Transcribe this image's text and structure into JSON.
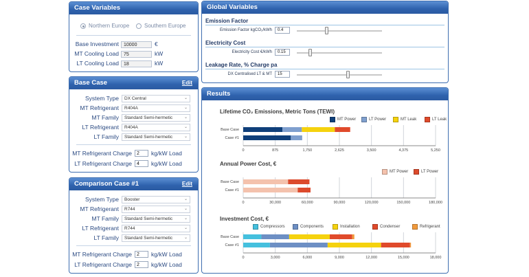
{
  "case_variables": {
    "title": "Case Variables",
    "regions": [
      {
        "label": "Northern Europe",
        "selected": true
      },
      {
        "label": "Southern Europe",
        "selected": false
      }
    ],
    "fields": [
      {
        "label": "Base Investment",
        "value": "10000",
        "unit": "€"
      },
      {
        "label": "MT Cooling Load",
        "value": "75",
        "unit": "kW"
      },
      {
        "label": "LT Cooling Load",
        "value": "18",
        "unit": "kW"
      }
    ]
  },
  "base_case": {
    "title": "Base Case",
    "edit": "Edit",
    "selects": [
      {
        "label": "System Type",
        "value": "DX Central"
      },
      {
        "label": "MT Refrigerant",
        "value": "R404A"
      },
      {
        "label": "MT Family",
        "value": "Standard Semi-hermetic"
      },
      {
        "label": "LT Refrigerant",
        "value": "R404A"
      },
      {
        "label": "LT Family",
        "value": "Standard Semi-hermetic"
      }
    ],
    "charges": [
      {
        "label": "MT Refrigerant Charge",
        "value": "2",
        "unit": "kg/kW Load"
      },
      {
        "label": "LT Refrigerant Charge",
        "value": "4",
        "unit": "kg/kW Load"
      }
    ]
  },
  "comparison_case": {
    "title": "Comparison Case #1",
    "edit": "Edit",
    "selects": [
      {
        "label": "System Type",
        "value": "Booster"
      },
      {
        "label": "MT Refrigerant",
        "value": "R744"
      },
      {
        "label": "MT Family",
        "value": "Standard Semi-hermetic"
      },
      {
        "label": "LT Refrigerant",
        "value": "R744"
      },
      {
        "label": "LT Family",
        "value": "Standard Semi-hermetic"
      }
    ],
    "charges": [
      {
        "label": "MT Refrigerant Charge",
        "value": "2",
        "unit": "kg/kW Load"
      },
      {
        "label": "LT Refrigerant Charge",
        "value": "2",
        "unit": "kg/kW Load"
      }
    ]
  },
  "global_variables": {
    "title": "Global Variables",
    "sections": [
      {
        "title": "Emission Factor",
        "label": "Emission Factor kgCO₂/kWh",
        "value": "0.4",
        "level": 0.35
      },
      {
        "title": "Electricity Cost",
        "label": "Electricity Cost €/kWh",
        "value": "0.15",
        "level": 0.15
      },
      {
        "title": "Leakage Rate, % Charge pa",
        "label": "DX Centralised LT & MT",
        "value": "15",
        "level": 0.6
      }
    ]
  },
  "results": {
    "title": "Results"
  },
  "colors": {
    "mt_power": "#0f3f7a",
    "lt_power": "#7f9fce",
    "mt_leak": "#f5d20e",
    "lt_leak": "#e04a2b",
    "mt_power_cost": "#f4c2ad",
    "lt_power_cost": "#dc4a2c",
    "compressors": "#45c0de",
    "components": "#6d8fc4",
    "installation": "#f5d20e",
    "condenser": "#e04a2b",
    "refrigerant": "#f19a3c"
  },
  "chart_data": [
    {
      "type": "bar",
      "orientation": "horizontal",
      "stacked": true,
      "title": "Lifetime CO₂ Emissions, Metric Tons (TEWI)",
      "categories": [
        "Base Case",
        "Case #1"
      ],
      "series": [
        {
          "name": "MT Power",
          "color_key": "mt_power",
          "values": [
            1070,
            1300
          ]
        },
        {
          "name": "LT Power",
          "color_key": "lt_power",
          "values": [
            530,
            310
          ]
        },
        {
          "name": "MT Leak",
          "color_key": "mt_leak",
          "values": [
            900,
            0
          ]
        },
        {
          "name": "LT Leak",
          "color_key": "lt_leak",
          "values": [
            420,
            0
          ]
        }
      ],
      "ticks": [
        "0",
        "875",
        "1,750",
        "2,625",
        "3,500",
        "4,375",
        "5,250"
      ],
      "xlim": [
        0,
        5250
      ]
    },
    {
      "type": "bar",
      "orientation": "horizontal",
      "stacked": true,
      "title": "Annual Power Cost, €",
      "categories": [
        "Base Case",
        "Case #1"
      ],
      "series": [
        {
          "name": "MT Power",
          "color_key": "mt_power_cost",
          "values": [
            42000,
            51000
          ]
        },
        {
          "name": "LT Power",
          "color_key": "lt_power_cost",
          "values": [
            20000,
            12000
          ]
        }
      ],
      "ticks": [
        "0",
        "30,000",
        "60,000",
        "90,000",
        "120,000",
        "150,000",
        "180,000"
      ],
      "xlim": [
        0,
        180000
      ]
    },
    {
      "type": "bar",
      "orientation": "horizontal",
      "stacked": true,
      "title": "Investment Cost, €",
      "categories": [
        "Base Case",
        "Case #1"
      ],
      "series": [
        {
          "name": "Compressors",
          "color_key": "compressors",
          "values": [
            1700,
            2500
          ]
        },
        {
          "name": "Components",
          "color_key": "components",
          "values": [
            2600,
            5400
          ]
        },
        {
          "name": "Installation",
          "color_key": "installation",
          "values": [
            3800,
            5000
          ]
        },
        {
          "name": "Condenser",
          "color_key": "condenser",
          "values": [
            2100,
            2700
          ]
        },
        {
          "name": "Refrigerant",
          "color_key": "refrigerant",
          "values": [
            200,
            100
          ]
        }
      ],
      "ticks": [
        "0",
        "3,000",
        "6,000",
        "9,000",
        "12,000",
        "15,000",
        "18,000"
      ],
      "xlim": [
        0,
        18000
      ]
    }
  ]
}
